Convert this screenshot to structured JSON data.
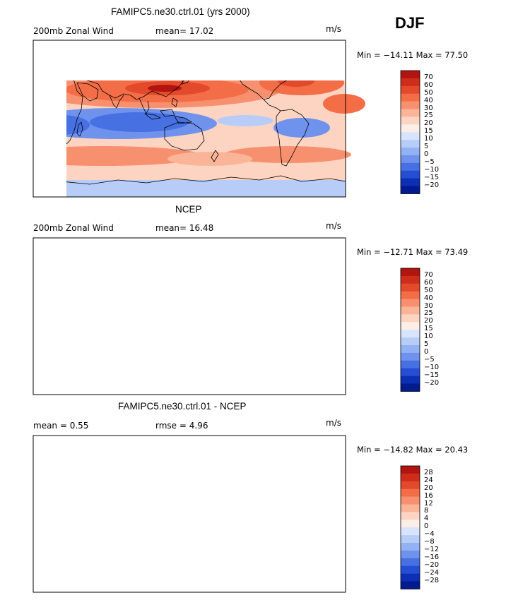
{
  "season": "DJF",
  "panels": [
    {
      "title": "FAMIPC5.ne30.ctrl.01 (yrs 2000)",
      "left_text": "200mb Zonal Wind",
      "stat_text": "mean=  17.02",
      "units": "m/s",
      "minmax": "Min = −14.11 Max =  77.50",
      "levels": [
        "70",
        "60",
        "50",
        "40",
        "30",
        "25",
        "20",
        "15",
        "10",
        "5",
        "0",
        "−5",
        "−10",
        "−15",
        "−20"
      ],
      "colors": [
        "#b2140f",
        "#cf2d1b",
        "#e24a2b",
        "#f36d47",
        "#f7906f",
        "#fab599",
        "#fdd4c2",
        "#fbeee6",
        "#d8e4fb",
        "#b7cdf8",
        "#93b2f3",
        "#6f92ec",
        "#4770e2",
        "#244ed3",
        "#0c2fb6",
        "#001a8f"
      ]
    },
    {
      "title": "NCEP",
      "left_text": "200mb Zonal Wind",
      "stat_text": "mean=  16.48",
      "units": "m/s",
      "minmax": "Min = −12.71 Max =  73.49",
      "levels": [
        "70",
        "60",
        "50",
        "40",
        "30",
        "25",
        "20",
        "15",
        "10",
        "5",
        "0",
        "−5",
        "−10",
        "−15",
        "−20"
      ],
      "colors": [
        "#b2140f",
        "#cf2d1b",
        "#e24a2b",
        "#f36d47",
        "#f7906f",
        "#fab599",
        "#fdd4c2",
        "#fbeee6",
        "#d8e4fb",
        "#b7cdf8",
        "#93b2f3",
        "#6f92ec",
        "#4770e2",
        "#244ed3",
        "#0c2fb6",
        "#001a8f"
      ]
    },
    {
      "title": "FAMIPC5.ne30.ctrl.01 - NCEP",
      "left_text": "mean =    0.55",
      "stat_text": "rmse =    4.96",
      "units": "m/s",
      "minmax": "Min = −14.82 Max =  20.43",
      "levels": [
        "28",
        "24",
        "20",
        "16",
        "12",
        "8",
        "4",
        "0",
        "−4",
        "−8",
        "−12",
        "−16",
        "−20",
        "−24",
        "−28"
      ],
      "colors": [
        "#b2140f",
        "#cf2d1b",
        "#e24a2b",
        "#f36d47",
        "#f7906f",
        "#fab599",
        "#fdd4c2",
        "#fbeee6",
        "#d8e4fb",
        "#b7cdf8",
        "#93b2f3",
        "#6f92ec",
        "#4770e2",
        "#244ed3",
        "#0c2fb6",
        "#001a8f"
      ]
    }
  ]
}
